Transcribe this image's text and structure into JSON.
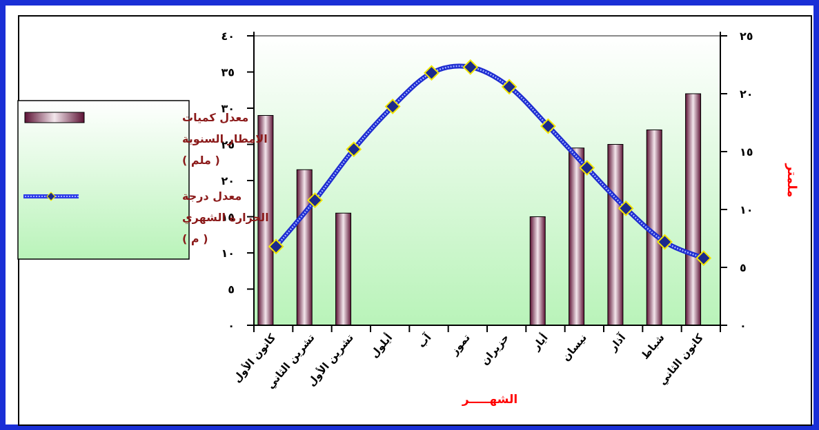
{
  "chart_data": {
    "type": "bar+line",
    "categories": [
      "كانون الأول",
      "تشرين الثاني",
      "تشرين الأول",
      "أيلول",
      "آب",
      "تموز",
      "حزيران",
      "أيار",
      "نيسان",
      "آذار",
      "شباط",
      "كانون الثاني"
    ],
    "series": [
      {
        "name": "معدل كميات الامطار السنوية ( ملم )",
        "type": "bar",
        "axis": "left",
        "values": [
          29,
          21.5,
          15.5,
          0,
          0,
          0,
          0,
          15,
          24.5,
          25,
          27,
          32
        ]
      },
      {
        "name": "معدل درجة الحرارة الشهري ( م )",
        "type": "line",
        "axis": "right",
        "values": [
          6.8,
          10.8,
          15.2,
          18.9,
          21.8,
          22.3,
          20.6,
          17.2,
          13.6,
          10.1,
          7.2,
          5.8
        ]
      }
    ],
    "left_axis": {
      "ylim": [
        0,
        40
      ],
      "ticks": [
        "٠",
        "٥",
        "١٠",
        "١٥",
        "٢٠",
        "٢٥",
        "٣٠",
        "٣٥",
        "٤٠"
      ]
    },
    "right_axis": {
      "ylim": [
        0,
        25
      ],
      "ticks": [
        "٠",
        "٥",
        "١٠",
        "١٥",
        "٢٠",
        "٢٥"
      ],
      "label": "ملمتر"
    },
    "xlabel": "الشهـــــر",
    "left_ylabel": "",
    "legend": {
      "position": "left"
    },
    "colors": {
      "frame": "#1a2fd6",
      "bar": "#7a1f4a",
      "line": "#2d3be8",
      "marker": "#1c2a8c",
      "marker_edge": "#f2e600",
      "axis_label": "#ff0000",
      "legend_text": "#8b1a1a",
      "plot_bg_top": "#ffffff",
      "plot_bg_bottom": "#b9f3b9"
    }
  }
}
